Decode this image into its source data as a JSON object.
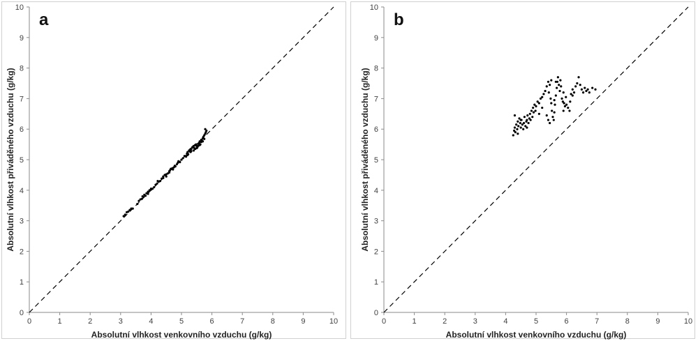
{
  "chart_data": [
    {
      "type": "scatter",
      "panel_label": "a",
      "xlabel": "Absolutní vlhkost venkovního vzduchu (g/kg)",
      "ylabel": "Absolutní vlhkost přiváděného vzduchu (g/kg)",
      "xlim": [
        0,
        10
      ],
      "ylim": [
        0,
        10
      ],
      "xticks": [
        "0",
        "1",
        "2",
        "3",
        "4",
        "5",
        "6",
        "7",
        "8",
        "9",
        "10"
      ],
      "yticks": [
        "0",
        "1",
        "2",
        "3",
        "4",
        "5",
        "6",
        "7",
        "8",
        "9",
        "10"
      ],
      "grid": false,
      "reference_line": "dashed y = x",
      "points": [
        [
          3.1,
          3.15
        ],
        [
          3.15,
          3.2
        ],
        [
          3.2,
          3.28
        ],
        [
          3.25,
          3.3
        ],
        [
          3.3,
          3.35
        ],
        [
          3.35,
          3.4
        ],
        [
          3.4,
          3.4
        ],
        [
          3.55,
          3.55
        ],
        [
          3.6,
          3.65
        ],
        [
          3.65,
          3.7
        ],
        [
          3.7,
          3.72
        ],
        [
          3.72,
          3.8
        ],
        [
          3.75,
          3.78
        ],
        [
          3.78,
          3.85
        ],
        [
          3.82,
          3.82
        ],
        [
          3.85,
          3.9
        ],
        [
          3.9,
          3.95
        ],
        [
          3.95,
          4.0
        ],
        [
          4.0,
          4.05
        ],
        [
          4.05,
          4.05
        ],
        [
          4.1,
          4.1
        ],
        [
          4.15,
          4.18
        ],
        [
          4.2,
          4.22
        ],
        [
          4.22,
          4.3
        ],
        [
          4.25,
          4.28
        ],
        [
          4.3,
          4.3
        ],
        [
          4.35,
          4.38
        ],
        [
          4.4,
          4.4
        ],
        [
          4.45,
          4.5
        ],
        [
          4.5,
          4.45
        ],
        [
          4.55,
          4.55
        ],
        [
          4.6,
          4.58
        ],
        [
          4.62,
          4.65
        ],
        [
          4.65,
          4.7
        ],
        [
          4.7,
          4.72
        ],
        [
          4.72,
          4.68
        ],
        [
          4.75,
          4.75
        ],
        [
          4.78,
          4.8
        ],
        [
          4.8,
          4.78
        ],
        [
          4.85,
          4.85
        ],
        [
          4.88,
          4.9
        ],
        [
          4.9,
          4.95
        ],
        [
          4.95,
          4.92
        ],
        [
          5.0,
          5.0
        ],
        [
          5.05,
          5.05
        ],
        [
          5.1,
          5.12
        ],
        [
          5.15,
          5.1
        ],
        [
          5.18,
          5.2
        ],
        [
          5.2,
          5.25
        ],
        [
          5.22,
          5.18
        ],
        [
          5.25,
          5.3
        ],
        [
          5.28,
          5.32
        ],
        [
          5.3,
          5.35
        ],
        [
          5.32,
          5.28
        ],
        [
          5.35,
          5.4
        ],
        [
          5.38,
          5.42
        ],
        [
          5.4,
          5.45
        ],
        [
          5.42,
          5.38
        ],
        [
          5.45,
          5.48
        ],
        [
          5.48,
          5.5
        ],
        [
          5.5,
          5.45
        ],
        [
          5.52,
          5.4
        ],
        [
          5.55,
          5.52
        ],
        [
          5.58,
          5.55
        ],
        [
          5.6,
          5.6
        ],
        [
          5.62,
          5.5
        ],
        [
          5.65,
          5.65
        ],
        [
          5.68,
          5.62
        ],
        [
          5.7,
          5.7
        ],
        [
          5.72,
          5.75
        ],
        [
          5.75,
          5.8
        ],
        [
          5.78,
          5.85
        ],
        [
          5.8,
          5.9
        ],
        [
          5.82,
          5.95
        ],
        [
          5.78,
          6.0
        ],
        [
          5.7,
          5.6
        ],
        [
          5.6,
          5.48
        ],
        [
          5.5,
          5.38
        ],
        [
          5.4,
          5.3
        ],
        [
          5.3,
          5.25
        ],
        [
          5.2,
          5.15
        ],
        [
          4.6,
          4.62
        ],
        [
          4.5,
          4.52
        ],
        [
          4.4,
          4.45
        ],
        [
          4.0,
          4.02
        ],
        [
          3.9,
          3.88
        ],
        [
          5.45,
          5.35
        ],
        [
          5.55,
          5.45
        ],
        [
          5.65,
          5.58
        ],
        [
          5.75,
          5.68
        ]
      ]
    },
    {
      "type": "scatter",
      "panel_label": "b",
      "xlabel": "Absolutní vlhkost venkovního vzduchu (g/kg)",
      "ylabel": "Absolutní vlhkost přiváděného vzduchu (g/kg)",
      "xlim": [
        0,
        10
      ],
      "ylim": [
        0,
        10
      ],
      "xticks": [
        "0",
        "1",
        "2",
        "3",
        "4",
        "5",
        "6",
        "7",
        "8",
        "9",
        "10"
      ],
      "yticks": [
        "0",
        "1",
        "2",
        "3",
        "4",
        "5",
        "6",
        "7",
        "8",
        "9",
        "10"
      ],
      "grid": false,
      "reference_line": "dashed y = x",
      "points": [
        [
          4.25,
          5.8
        ],
        [
          4.28,
          5.95
        ],
        [
          4.3,
          6.05
        ],
        [
          4.32,
          5.9
        ],
        [
          4.35,
          6.15
        ],
        [
          4.38,
          6.0
        ],
        [
          4.4,
          6.25
        ],
        [
          4.42,
          6.1
        ],
        [
          4.45,
          6.35
        ],
        [
          4.48,
          6.2
        ],
        [
          4.5,
          6.05
        ],
        [
          4.52,
          6.3
        ],
        [
          4.55,
          6.15
        ],
        [
          4.58,
          6.0
        ],
        [
          4.6,
          6.2
        ],
        [
          4.62,
          6.4
        ],
        [
          4.65,
          6.1
        ],
        [
          4.68,
          6.25
        ],
        [
          4.7,
          6.3
        ],
        [
          4.72,
          6.45
        ],
        [
          4.75,
          6.2
        ],
        [
          4.78,
          6.35
        ],
        [
          4.8,
          6.5
        ],
        [
          4.82,
          6.3
        ],
        [
          4.85,
          6.6
        ],
        [
          4.88,
          6.4
        ],
        [
          4.9,
          6.7
        ],
        [
          4.92,
          6.55
        ],
        [
          4.95,
          6.8
        ],
        [
          4.98,
          6.6
        ],
        [
          5.0,
          6.75
        ],
        [
          5.05,
          6.9
        ],
        [
          5.1,
          6.85
        ],
        [
          5.15,
          7.0
        ],
        [
          5.2,
          7.05
        ],
        [
          5.25,
          7.15
        ],
        [
          5.3,
          7.25
        ],
        [
          5.35,
          7.4
        ],
        [
          5.4,
          7.55
        ],
        [
          5.42,
          7.2
        ],
        [
          5.45,
          7.45
        ],
        [
          5.48,
          7.0
        ],
        [
          5.5,
          6.85
        ],
        [
          5.52,
          6.6
        ],
        [
          5.55,
          6.4
        ],
        [
          5.58,
          6.3
        ],
        [
          5.6,
          6.55
        ],
        [
          5.62,
          6.8
        ],
        [
          5.65,
          7.1
        ],
        [
          5.68,
          7.35
        ],
        [
          5.7,
          7.55
        ],
        [
          5.72,
          7.7
        ],
        [
          5.75,
          7.45
        ],
        [
          5.78,
          7.25
        ],
        [
          5.8,
          7.6
        ],
        [
          5.82,
          7.4
        ],
        [
          5.85,
          7.0
        ],
        [
          5.88,
          6.9
        ],
        [
          5.9,
          7.2
        ],
        [
          5.92,
          6.85
        ],
        [
          5.95,
          6.75
        ],
        [
          5.98,
          7.05
        ],
        [
          6.0,
          6.8
        ],
        [
          6.05,
          6.7
        ],
        [
          6.1,
          6.6
        ],
        [
          6.12,
          6.9
        ],
        [
          6.15,
          7.15
        ],
        [
          6.2,
          7.3
        ],
        [
          6.25,
          7.2
        ],
        [
          6.3,
          7.4
        ],
        [
          6.35,
          7.5
        ],
        [
          6.4,
          7.7
        ],
        [
          6.45,
          7.45
        ],
        [
          6.5,
          7.3
        ],
        [
          6.55,
          7.2
        ],
        [
          6.6,
          7.35
        ],
        [
          6.65,
          7.25
        ],
        [
          6.7,
          7.3
        ],
        [
          6.75,
          7.2
        ],
        [
          6.85,
          7.35
        ],
        [
          6.95,
          7.3
        ],
        [
          5.4,
          6.3
        ],
        [
          5.45,
          6.2
        ],
        [
          5.35,
          6.45
        ],
        [
          4.3,
          6.45
        ],
        [
          4.4,
          5.85
        ],
        [
          4.5,
          6.3
        ],
        [
          4.7,
          6.05
        ],
        [
          5.1,
          6.5
        ],
        [
          5.2,
          6.7
        ],
        [
          5.6,
          6.95
        ],
        [
          5.9,
          6.6
        ],
        [
          6.2,
          7.1
        ],
        [
          5.5,
          7.6
        ],
        [
          5.65,
          7.55
        ]
      ]
    }
  ]
}
